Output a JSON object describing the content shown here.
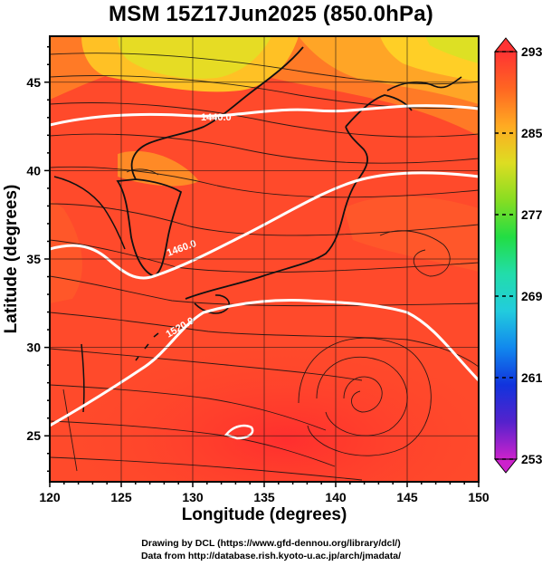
{
  "title": "MSM 15Z17Jun2025 (850.0hPa)",
  "axes": {
    "xlabel": "Longitude (degrees)",
    "ylabel": "Latitude  (degrees)",
    "xlim": [
      120,
      150
    ],
    "ylim": [
      22.4,
      47.6
    ],
    "x_ticks": [
      "120",
      "125",
      "130",
      "135",
      "140",
      "145",
      "150"
    ],
    "y_ticks": [
      "25",
      "30",
      "35",
      "40",
      "45"
    ]
  },
  "colorbar": {
    "min": 253,
    "max": 293,
    "labels": [
      "293",
      "285",
      "277",
      "269",
      "261",
      "253"
    ],
    "colors": [
      "#cc22cc",
      "#5522cc",
      "#1133dd",
      "#1188ee",
      "#22ccdd",
      "#22ddaa",
      "#22dd44",
      "#88dd22",
      "#dddd22",
      "#ffaa22",
      "#ff6622",
      "#ff3333"
    ]
  },
  "contours": [
    {
      "label": "1440.0"
    },
    {
      "label": "1460.0"
    },
    {
      "label": "1520.0"
    }
  ],
  "footer": {
    "line1": "Drawing by DCL (https://www.gfd-dennou.org/library/dcl/)",
    "line2": "Data from http://database.rish.kyoto-u.ac.jp/arch/jmadata/"
  }
}
